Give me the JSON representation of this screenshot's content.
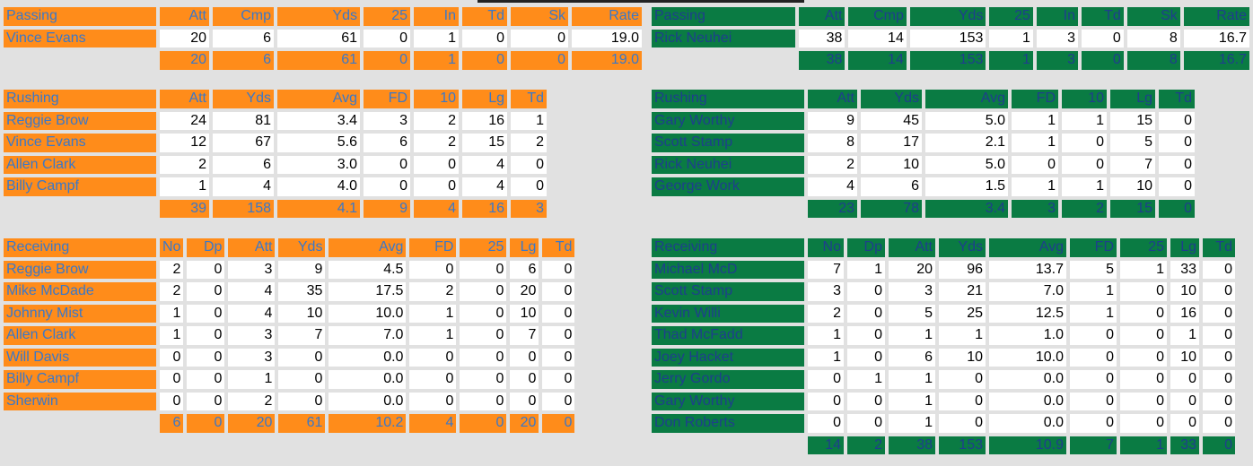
{
  "left": {
    "passing": {
      "columns": [
        "Passing",
        "Att",
        "Cmp",
        "Yds",
        "25",
        "In",
        "Td",
        "Sk",
        "Rate"
      ],
      "rows": [
        [
          "Vince Evans",
          "20",
          "6",
          "61",
          "0",
          "1",
          "0",
          "0",
          "19.0"
        ]
      ],
      "total": [
        "20",
        "6",
        "61",
        "0",
        "1",
        "0",
        "0",
        "19.0"
      ]
    },
    "rushing": {
      "columns": [
        "Rushing",
        "Att",
        "Yds",
        "Avg",
        "FD",
        "10",
        "Lg",
        "Td"
      ],
      "rows": [
        [
          "Reggie Brow",
          "24",
          "81",
          "3.4",
          "3",
          "2",
          "16",
          "1"
        ],
        [
          "Vince Evans",
          "12",
          "67",
          "5.6",
          "6",
          "2",
          "15",
          "2"
        ],
        [
          "Allen Clark",
          "2",
          "6",
          "3.0",
          "0",
          "0",
          "4",
          "0"
        ],
        [
          "Billy Campf",
          "1",
          "4",
          "4.0",
          "0",
          "0",
          "4",
          "0"
        ]
      ],
      "total": [
        "39",
        "158",
        "4.1",
        "9",
        "4",
        "16",
        "3"
      ]
    },
    "receiving": {
      "columns": [
        "Receiving",
        "No",
        "Dp",
        "Att",
        "Yds",
        "Avg",
        "FD",
        "25",
        "Lg",
        "Td"
      ],
      "rows": [
        [
          "Reggie Brow",
          "2",
          "0",
          "3",
          "9",
          "4.5",
          "0",
          "0",
          "6",
          "0"
        ],
        [
          "Mike McDade",
          "2",
          "0",
          "4",
          "35",
          "17.5",
          "2",
          "0",
          "20",
          "0"
        ],
        [
          "Johnny Mist",
          "1",
          "0",
          "4",
          "10",
          "10.0",
          "1",
          "0",
          "10",
          "0"
        ],
        [
          "Allen Clark",
          "1",
          "0",
          "3",
          "7",
          "7.0",
          "1",
          "0",
          "7",
          "0"
        ],
        [
          "Will Davis",
          "0",
          "0",
          "3",
          "0",
          "0.0",
          "0",
          "0",
          "0",
          "0"
        ],
        [
          "Billy Campf",
          "0",
          "0",
          "1",
          "0",
          "0.0",
          "0",
          "0",
          "0",
          "0"
        ],
        [
          "Sherwin",
          "0",
          "0",
          "2",
          "0",
          "0.0",
          "0",
          "0",
          "0",
          "0"
        ]
      ],
      "total": [
        "6",
        "0",
        "20",
        "61",
        "10.2",
        "4",
        "0",
        "20",
        "0"
      ]
    }
  },
  "right": {
    "passing": {
      "columns": [
        "Passing",
        "Att",
        "Cmp",
        "Yds",
        "25",
        "In",
        "Td",
        "Sk",
        "Rate"
      ],
      "rows": [
        [
          "Rick Neuhei",
          "38",
          "14",
          "153",
          "1",
          "3",
          "0",
          "8",
          "16.7"
        ]
      ],
      "total": [
        "38",
        "14",
        "153",
        "1",
        "3",
        "0",
        "8",
        "16.7"
      ]
    },
    "rushing": {
      "columns": [
        "Rushing",
        "Att",
        "Yds",
        "Avg",
        "FD",
        "10",
        "Lg",
        "Td"
      ],
      "rows": [
        [
          "Gary Worthy",
          "9",
          "45",
          "5.0",
          "1",
          "1",
          "15",
          "0"
        ],
        [
          "Scott Stamp",
          "8",
          "17",
          "2.1",
          "1",
          "0",
          "5",
          "0"
        ],
        [
          "Rick Neuhei",
          "2",
          "10",
          "5.0",
          "0",
          "0",
          "7",
          "0"
        ],
        [
          "George Work",
          "4",
          "6",
          "1.5",
          "1",
          "1",
          "10",
          "0"
        ]
      ],
      "total": [
        "23",
        "78",
        "3.4",
        "3",
        "2",
        "15",
        "0"
      ]
    },
    "receiving": {
      "columns": [
        "Receiving",
        "No",
        "Dp",
        "Att",
        "Yds",
        "Avg",
        "FD",
        "25",
        "Lg",
        "Td"
      ],
      "rows": [
        [
          "Michael McD",
          "7",
          "1",
          "20",
          "96",
          "13.7",
          "5",
          "1",
          "33",
          "0"
        ],
        [
          "Scott Stamp",
          "3",
          "0",
          "3",
          "21",
          "7.0",
          "1",
          "0",
          "10",
          "0"
        ],
        [
          "Kevin Willi",
          "2",
          "0",
          "5",
          "25",
          "12.5",
          "1",
          "0",
          "16",
          "0"
        ],
        [
          "Thad McFadd",
          "1",
          "0",
          "1",
          "1",
          "1.0",
          "0",
          "0",
          "1",
          "0"
        ],
        [
          "Joey Hacket",
          "1",
          "0",
          "6",
          "10",
          "10.0",
          "0",
          "0",
          "10",
          "0"
        ],
        [
          "Jerry Gordo",
          "0",
          "1",
          "1",
          "0",
          "0.0",
          "0",
          "0",
          "0",
          "0"
        ],
        [
          "Gary Worthy",
          "0",
          "0",
          "1",
          "0",
          "0.0",
          "0",
          "0",
          "0",
          "0"
        ],
        [
          "Don Roberts",
          "0",
          "0",
          "1",
          "0",
          "0.0",
          "0",
          "0",
          "0",
          "0"
        ]
      ],
      "total": [
        "14",
        "2",
        "38",
        "153",
        "10.9",
        "7",
        "1",
        "33",
        "0"
      ]
    }
  },
  "colors": {
    "left_team": "#ff8c1a",
    "right_team": "#0a7b43",
    "left_text": "#3a78c9",
    "right_text": "#1e3f8c"
  }
}
